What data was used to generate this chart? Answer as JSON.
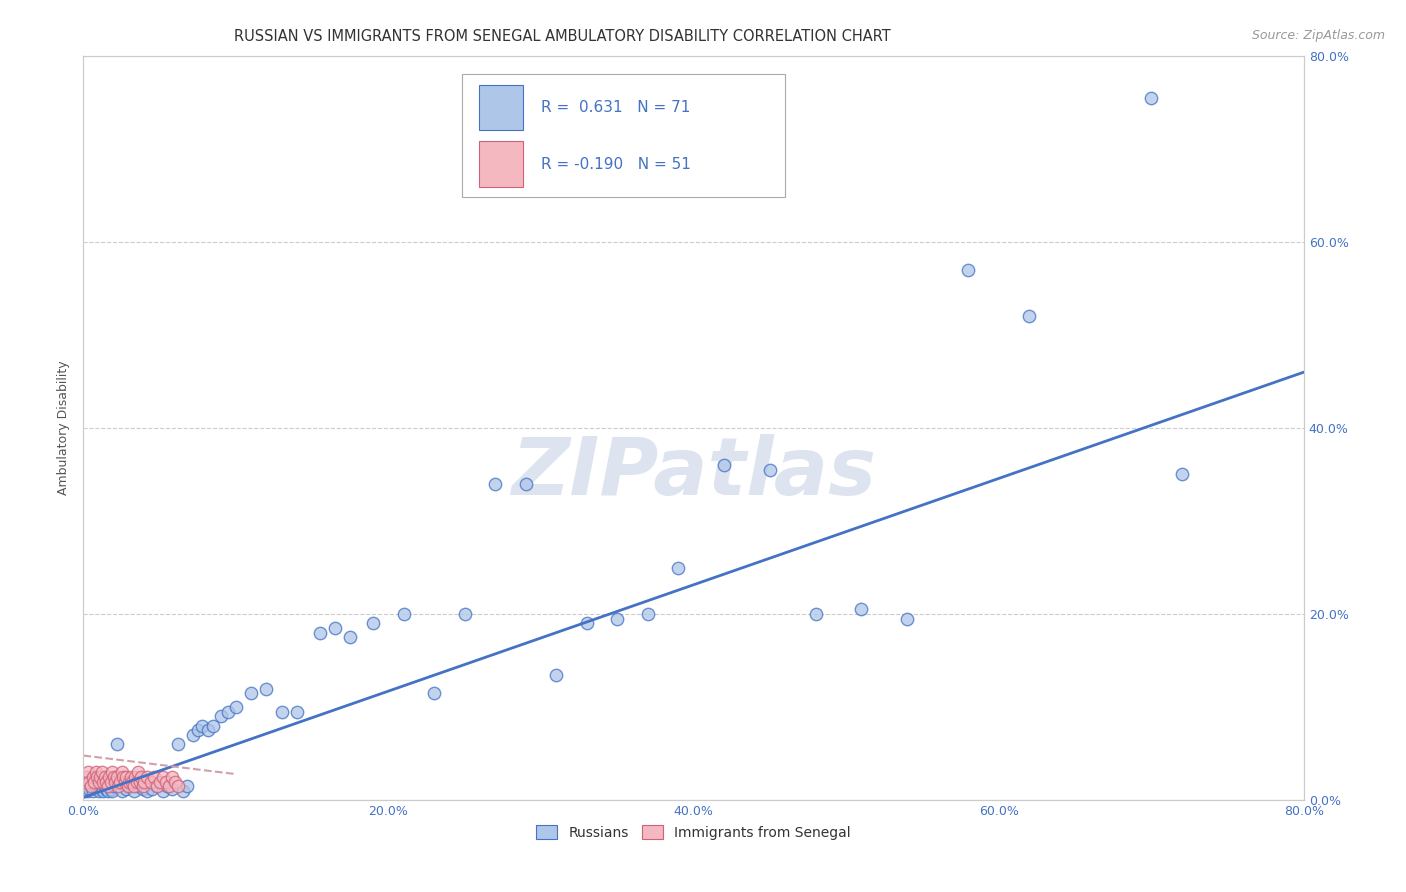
{
  "title": "RUSSIAN VS IMMIGRANTS FROM SENEGAL AMBULATORY DISABILITY CORRELATION CHART",
  "source": "Source: ZipAtlas.com",
  "ylabel": "Ambulatory Disability",
  "xlim": [
    0.0,
    0.8
  ],
  "ylim": [
    0.0,
    0.8
  ],
  "background_color": "#ffffff",
  "grid_color": "#cccccc",
  "watermark_text": "ZIPatlas",
  "russian_fill": "#aec6e8",
  "russian_edge": "#4472c4",
  "senegal_fill": "#f4b8c1",
  "senegal_edge": "#d0607a",
  "russian_r": 0.631,
  "russian_n": 71,
  "senegal_r": -0.19,
  "senegal_n": 51,
  "rus_line_color": "#4472c4",
  "sen_line_color": "#d0a0aa",
  "tick_color": "#4472c4",
  "title_fontsize": 10.5,
  "source_fontsize": 9,
  "tick_fontsize": 9,
  "ylabel_fontsize": 9,
  "legend_fontsize": 11,
  "scatter_size": 80,
  "rus_line_x0": 0.0,
  "rus_line_y0": 0.003,
  "rus_line_x1": 0.8,
  "rus_line_y1": 0.46,
  "sen_line_x0": 0.0,
  "sen_line_y0": 0.048,
  "sen_line_x1": 0.1,
  "sen_line_y1": 0.028,
  "russians_x": [
    0.001,
    0.002,
    0.003,
    0.004,
    0.005,
    0.006,
    0.007,
    0.008,
    0.009,
    0.01,
    0.011,
    0.012,
    0.013,
    0.014,
    0.015,
    0.016,
    0.017,
    0.018,
    0.019,
    0.02,
    0.022,
    0.025,
    0.028,
    0.03,
    0.033,
    0.036,
    0.039,
    0.042,
    0.045,
    0.048,
    0.052,
    0.055,
    0.058,
    0.062,
    0.065,
    0.068,
    0.072,
    0.075,
    0.078,
    0.082,
    0.085,
    0.09,
    0.095,
    0.1,
    0.11,
    0.12,
    0.13,
    0.14,
    0.155,
    0.165,
    0.175,
    0.19,
    0.21,
    0.23,
    0.25,
    0.27,
    0.29,
    0.31,
    0.33,
    0.35,
    0.37,
    0.39,
    0.42,
    0.45,
    0.48,
    0.51,
    0.54,
    0.58,
    0.62,
    0.7,
    0.72
  ],
  "russians_y": [
    0.01,
    0.015,
    0.01,
    0.012,
    0.015,
    0.01,
    0.018,
    0.015,
    0.012,
    0.01,
    0.015,
    0.012,
    0.01,
    0.015,
    0.012,
    0.01,
    0.015,
    0.012,
    0.01,
    0.015,
    0.06,
    0.01,
    0.012,
    0.015,
    0.01,
    0.015,
    0.012,
    0.01,
    0.012,
    0.015,
    0.01,
    0.015,
    0.012,
    0.06,
    0.01,
    0.015,
    0.07,
    0.075,
    0.08,
    0.075,
    0.08,
    0.09,
    0.095,
    0.1,
    0.115,
    0.12,
    0.095,
    0.095,
    0.18,
    0.185,
    0.175,
    0.19,
    0.2,
    0.115,
    0.2,
    0.34,
    0.34,
    0.135,
    0.19,
    0.195,
    0.2,
    0.25,
    0.36,
    0.355,
    0.2,
    0.205,
    0.195,
    0.57,
    0.52,
    0.755,
    0.35
  ],
  "senegal_x": [
    0.001,
    0.002,
    0.003,
    0.004,
    0.005,
    0.006,
    0.007,
    0.008,
    0.009,
    0.01,
    0.011,
    0.012,
    0.013,
    0.014,
    0.015,
    0.016,
    0.017,
    0.018,
    0.019,
    0.02,
    0.021,
    0.022,
    0.023,
    0.024,
    0.025,
    0.026,
    0.027,
    0.028,
    0.029,
    0.03,
    0.031,
    0.032,
    0.033,
    0.034,
    0.035,
    0.036,
    0.037,
    0.038,
    0.039,
    0.04,
    0.042,
    0.044,
    0.046,
    0.048,
    0.05,
    0.052,
    0.054,
    0.056,
    0.058,
    0.06,
    0.062
  ],
  "senegal_y": [
    0.02,
    0.025,
    0.03,
    0.02,
    0.015,
    0.025,
    0.02,
    0.03,
    0.025,
    0.02,
    0.025,
    0.03,
    0.02,
    0.025,
    0.02,
    0.015,
    0.025,
    0.02,
    0.03,
    0.025,
    0.02,
    0.025,
    0.015,
    0.02,
    0.03,
    0.025,
    0.02,
    0.025,
    0.015,
    0.02,
    0.025,
    0.02,
    0.015,
    0.025,
    0.02,
    0.03,
    0.02,
    0.025,
    0.015,
    0.02,
    0.025,
    0.02,
    0.025,
    0.015,
    0.02,
    0.025,
    0.02,
    0.015,
    0.025,
    0.02,
    0.015
  ]
}
